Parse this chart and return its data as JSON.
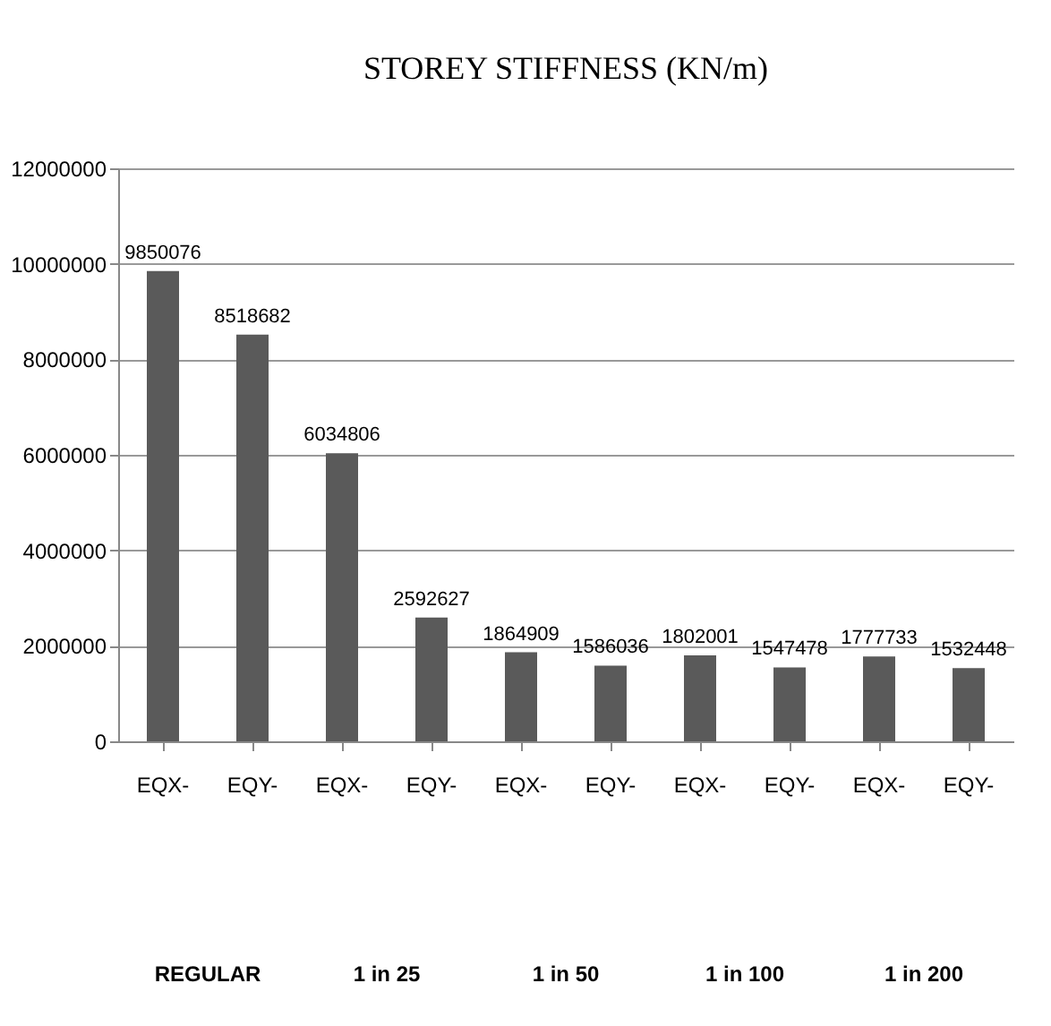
{
  "chart_data": {
    "type": "bar",
    "title": "STOREY STIFFNESS (KN/m)",
    "categories": [
      "EQX-",
      "EQY-",
      "EQX-",
      "EQY-",
      "EQX-",
      "EQY-",
      "EQX-",
      "EQY-",
      "EQX-",
      "EQY-"
    ],
    "series": [
      {
        "color": "#5a5a5a",
        "values": [
          9850076,
          8518682,
          6034806,
          2592627,
          1864909,
          1586036,
          1802001,
          1547478,
          1777733,
          1532448
        ]
      }
    ],
    "ylim": [
      0,
      12000000
    ],
    "yticks": [
      0,
      2000000,
      4000000,
      6000000,
      8000000,
      10000000,
      12000000
    ],
    "grid": "y",
    "data_labels": true,
    "annotations": [
      "REGULAR",
      "1 in 25",
      "1 in 50",
      "1 in 100",
      "1 in 200"
    ]
  }
}
